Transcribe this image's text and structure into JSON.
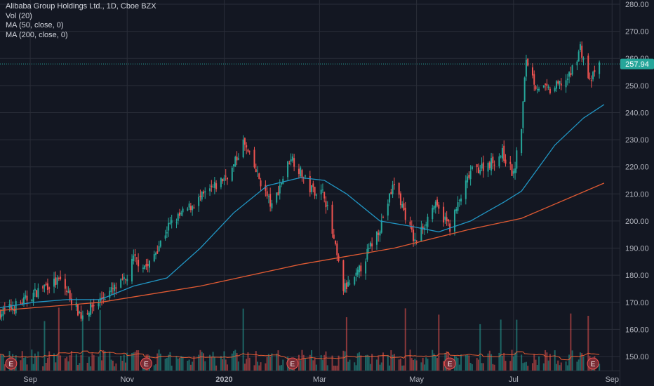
{
  "legend": {
    "symbol_line": "Alibaba Group Holdings Ltd., 1D, Cboe BZX",
    "volume_line": "Vol (20)",
    "ma50_line": "MA (50, close, 0)",
    "ma200_line": "MA (200, close, 0)"
  },
  "price_axis": {
    "ticks": [
      "280.00",
      "270.00",
      "260.00",
      "250.00",
      "240.00",
      "230.00",
      "220.00",
      "210.00",
      "200.00",
      "190.00",
      "180.00",
      "170.00",
      "160.00",
      "150.00"
    ]
  },
  "time_axis": {
    "labels": [
      "Sep",
      "Nov",
      "2020",
      "Mar",
      "May",
      "Jul",
      "Sep"
    ]
  },
  "last_price": {
    "label": "257.94",
    "value": 257.94
  },
  "earnings_marker": {
    "label": "E"
  },
  "colors": {
    "background": "#131722",
    "grid": "#2a2e39",
    "up": "#26a69a",
    "down": "#ef5350",
    "ma50": "#2196c4",
    "ma200": "#e05a33",
    "volume_ma": "#e05a33",
    "last_price_badge": "#26a69a",
    "earnings_badge": "#7b2d36"
  },
  "chart_data": {
    "type": "candlestick",
    "symbol": "Alibaba Group Holdings Ltd.",
    "interval": "1D",
    "exchange": "Cboe BZX",
    "ylim": [
      145,
      284
    ],
    "x_range": [
      "2019-08-13",
      "2020-09-01"
    ],
    "key_points": [
      {
        "date": "2019-08-13",
        "close": 166
      },
      {
        "date": "2019-08-27",
        "close": 170
      },
      {
        "date": "2019-09-10",
        "close": 176
      },
      {
        "date": "2019-09-20",
        "close": 178
      },
      {
        "date": "2019-10-03",
        "close": 165
      },
      {
        "date": "2019-10-17",
        "close": 172
      },
      {
        "date": "2019-10-31",
        "close": 178
      },
      {
        "date": "2019-11-05",
        "close": 186
      },
      {
        "date": "2019-11-14",
        "close": 183
      },
      {
        "date": "2019-11-27",
        "close": 198
      },
      {
        "date": "2019-12-12",
        "close": 206
      },
      {
        "date": "2019-12-27",
        "close": 213
      },
      {
        "date": "2020-01-06",
        "close": 219
      },
      {
        "date": "2020-01-13",
        "close": 229
      },
      {
        "date": "2020-01-31",
        "close": 205
      },
      {
        "date": "2020-02-12",
        "close": 224
      },
      {
        "date": "2020-02-24",
        "close": 212
      },
      {
        "date": "2020-03-04",
        "close": 210
      },
      {
        "date": "2020-03-16",
        "close": 175
      },
      {
        "date": "2020-03-23",
        "close": 178
      },
      {
        "date": "2020-04-08",
        "close": 198
      },
      {
        "date": "2020-04-17",
        "close": 214
      },
      {
        "date": "2020-04-30",
        "close": 192
      },
      {
        "date": "2020-05-12",
        "close": 206
      },
      {
        "date": "2020-05-22",
        "close": 198
      },
      {
        "date": "2020-06-04",
        "close": 218
      },
      {
        "date": "2020-06-18",
        "close": 222
      },
      {
        "date": "2020-06-24",
        "close": 225
      },
      {
        "date": "2020-07-01",
        "close": 217
      },
      {
        "date": "2020-07-06",
        "close": 235
      },
      {
        "date": "2020-07-09",
        "close": 260
      },
      {
        "date": "2020-07-15",
        "close": 250
      },
      {
        "date": "2020-07-24",
        "close": 248
      },
      {
        "date": "2020-08-05",
        "close": 253
      },
      {
        "date": "2020-08-12",
        "close": 264
      },
      {
        "date": "2020-08-18",
        "close": 251
      },
      {
        "date": "2020-08-24",
        "close": 257.94
      }
    ],
    "ma50": [
      {
        "date": "2019-08-13",
        "value": 168
      },
      {
        "date": "2019-09-03",
        "value": 170
      },
      {
        "date": "2019-09-24",
        "value": 171
      },
      {
        "date": "2019-10-15",
        "value": 171
      },
      {
        "date": "2019-11-05",
        "value": 176
      },
      {
        "date": "2019-11-26",
        "value": 179
      },
      {
        "date": "2019-12-17",
        "value": 190
      },
      {
        "date": "2020-01-07",
        "value": 203
      },
      {
        "date": "2020-01-28",
        "value": 213
      },
      {
        "date": "2020-02-18",
        "value": 216
      },
      {
        "date": "2020-03-04",
        "value": 215
      },
      {
        "date": "2020-03-18",
        "value": 210
      },
      {
        "date": "2020-04-08",
        "value": 200
      },
      {
        "date": "2020-04-28",
        "value": 198
      },
      {
        "date": "2020-05-15",
        "value": 196
      },
      {
        "date": "2020-06-04",
        "value": 200
      },
      {
        "date": "2020-06-25",
        "value": 207
      },
      {
        "date": "2020-07-06",
        "value": 211
      },
      {
        "date": "2020-07-27",
        "value": 228
      },
      {
        "date": "2020-08-14",
        "value": 238
      },
      {
        "date": "2020-08-27",
        "value": 243
      }
    ],
    "ma200": [
      {
        "date": "2019-08-13",
        "value": 167
      },
      {
        "date": "2019-10-15",
        "value": 170
      },
      {
        "date": "2019-12-17",
        "value": 176
      },
      {
        "date": "2020-02-18",
        "value": 184
      },
      {
        "date": "2020-04-17",
        "value": 190
      },
      {
        "date": "2020-06-04",
        "value": 197
      },
      {
        "date": "2020-07-06",
        "value": 201
      },
      {
        "date": "2020-08-27",
        "value": 214
      }
    ],
    "earnings_dates": [
      "2019-08-20",
      "2019-11-13",
      "2020-02-13",
      "2020-05-22",
      "2020-08-20"
    ],
    "volume_note": "Daily volume histogram (up/down coloured) with 20-period volume moving average"
  }
}
